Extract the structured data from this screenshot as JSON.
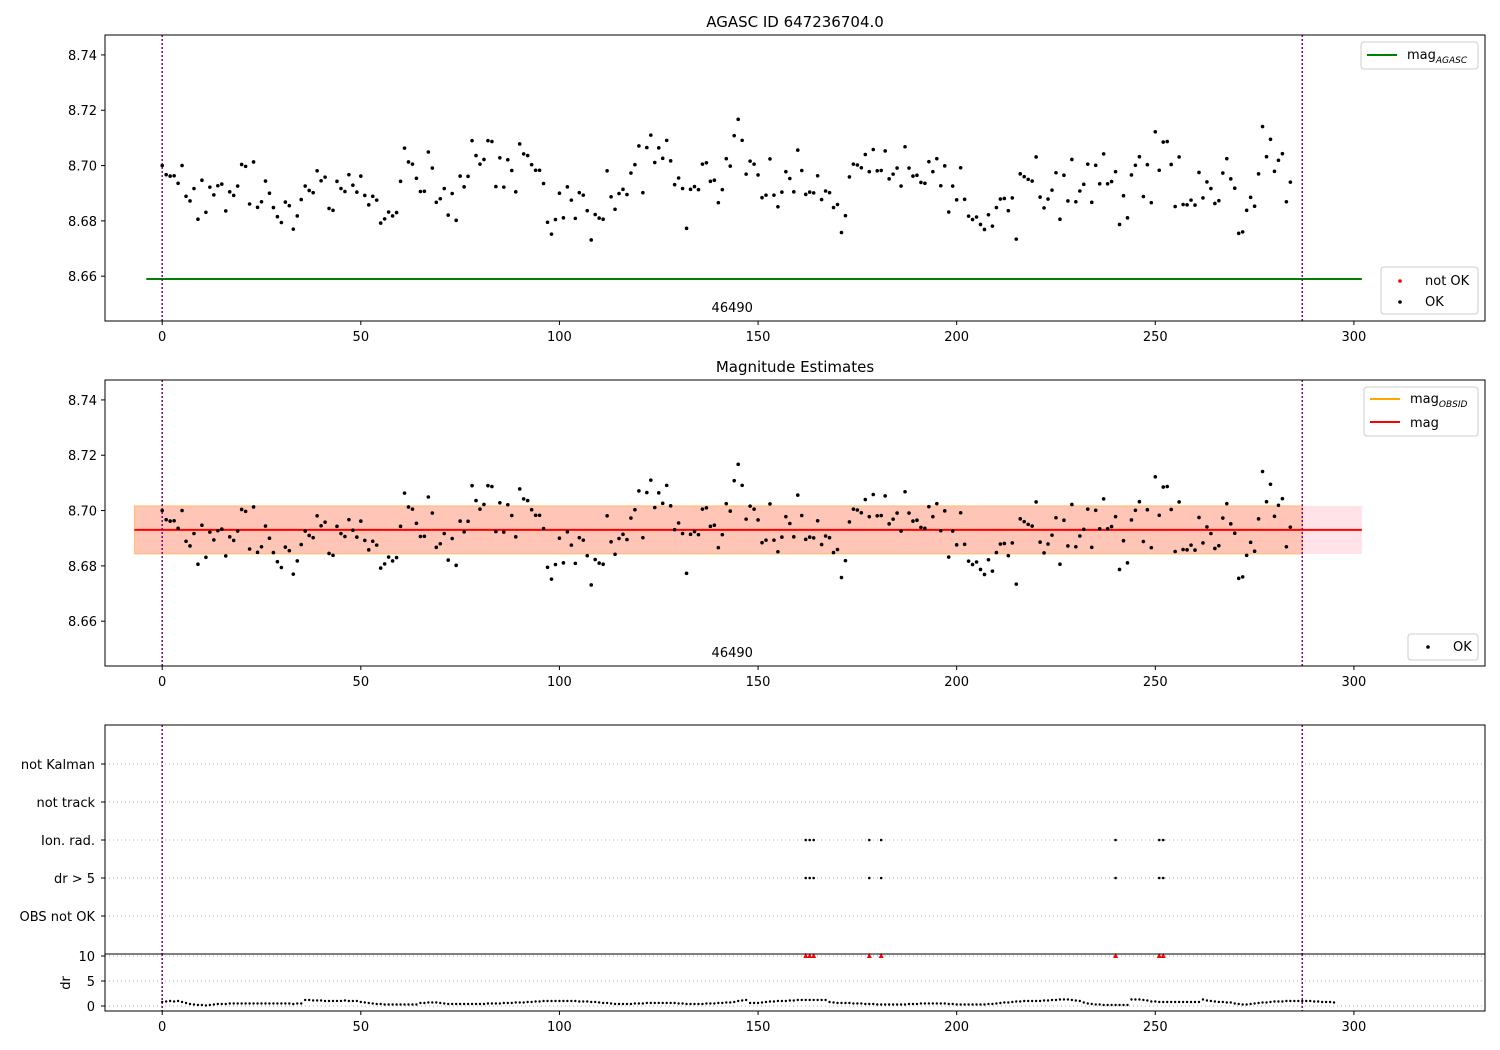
{
  "chart_data": [
    {
      "type": "scatter",
      "title": "AGASC ID 647236704.0",
      "xlim": [
        -14.4,
        333
      ],
      "ylim": [
        8.6438,
        8.7472
      ],
      "xticks": [
        0,
        50,
        100,
        150,
        200,
        250,
        300
      ],
      "yticks": [
        8.66,
        8.68,
        8.7,
        8.72,
        8.74
      ],
      "vlines": [
        0,
        287
      ],
      "hline_agasc": {
        "y": 8.659,
        "x": [
          -4,
          302
        ],
        "color": "#008000"
      },
      "obsid_label": {
        "text": "46490",
        "x": 143.5
      },
      "legend_top": [
        {
          "label": "mag",
          "sub": "AGASC",
          "color": "#008000",
          "kind": "line"
        }
      ],
      "legend_bottom": [
        {
          "label": "not OK",
          "color": "#ff0000",
          "kind": "dot"
        },
        {
          "label": "OK",
          "color": "#000000",
          "kind": "dot"
        }
      ]
    },
    {
      "type": "scatter",
      "title": "Magnitude Estimates",
      "xlim": [
        -14.4,
        333
      ],
      "ylim": [
        8.6438,
        8.7472
      ],
      "xticks": [
        0,
        50,
        100,
        150,
        200,
        250,
        300
      ],
      "yticks": [
        8.66,
        8.68,
        8.7,
        8.72,
        8.74
      ],
      "vlines": [
        0,
        287
      ],
      "mag_line": {
        "y": 8.693,
        "x": [
          -7,
          302
        ],
        "color": "#ff0000"
      },
      "band_outer": {
        "y": [
          8.6843,
          8.7017
        ],
        "x": [
          -7,
          302
        ],
        "color": "#ffc0cb"
      },
      "band_inner": {
        "y": [
          8.6843,
          8.7017
        ],
        "x": [
          -7,
          287
        ],
        "color": "#ffa07a"
      },
      "obsid_label": {
        "text": "46490",
        "x": 143.5
      },
      "legend_top": [
        {
          "label": "mag",
          "sub": "OBSID",
          "color": "#ffa500",
          "kind": "line"
        },
        {
          "label": "mag",
          "sub": "",
          "color": "#ff0000",
          "kind": "line"
        }
      ],
      "legend_bottom": [
        {
          "label": "OK",
          "color": "#000000",
          "kind": "dot"
        }
      ]
    },
    {
      "type": "scatter",
      "categories": [
        "not Kalman",
        "not track",
        "Ion. rad.",
        "dr > 5",
        "OBS not OK"
      ],
      "flag_points": {
        "Ion. rad.": [
          162,
          163,
          164,
          178,
          181,
          240,
          251,
          252
        ],
        "dr > 5": [
          162,
          163,
          164,
          178,
          181,
          240,
          251,
          252
        ]
      },
      "vlines": [
        0,
        287
      ]
    },
    {
      "type": "scatter",
      "ylabel": "dr",
      "yticks": [
        0,
        5,
        10
      ],
      "ylim": [
        -1,
        10.4
      ],
      "xticks": [
        0,
        50,
        100,
        150,
        200,
        250,
        300
      ],
      "clipped_points": [
        162,
        163,
        164,
        178,
        181,
        240,
        251,
        252
      ],
      "vlines": [
        0,
        287
      ]
    }
  ],
  "mags": [
    8.7,
    8.6967,
    8.6962,
    8.6963,
    8.6936,
    8.7,
    8.6889,
    8.6872,
    8.6917,
    8.6806,
    8.6947,
    8.6831,
    8.6922,
    8.6894,
    8.6927,
    8.6933,
    8.6836,
    8.6905,
    8.6892,
    8.6926,
    8.7004,
    8.6997,
    8.6861,
    8.7013,
    8.6849,
    8.6869,
    8.6944,
    8.69,
    8.6848,
    8.6815,
    8.6794,
    8.6868,
    8.6855,
    8.677,
    8.6818,
    8.6877,
    8.6926,
    8.691,
    8.6902,
    8.6981,
    8.6945,
    8.6958,
    8.6845,
    8.6838,
    8.6943,
    8.6917,
    8.6906,
    8.6967,
    8.6929,
    8.6904,
    8.6962,
    8.6892,
    8.6858,
    8.6889,
    8.6875,
    8.6792,
    8.6807,
    8.6832,
    8.6818,
    8.683,
    8.6943,
    8.7063,
    8.7013,
    8.7005,
    8.6954,
    8.6906,
    8.6907,
    8.7049,
    8.6991,
    8.6867,
    8.688,
    8.6917,
    8.6821,
    8.6899,
    8.6802,
    8.6962,
    8.6923,
    8.6961,
    8.709,
    8.7036,
    8.7005,
    8.7022,
    8.709,
    8.7087,
    8.6924,
    8.7028,
    8.6922,
    8.7021,
    8.6982,
    8.6905,
    8.7078,
    8.7042,
    8.7036,
    8.7003,
    8.6983,
    8.6983,
    8.6935,
    8.6795,
    8.6752,
    8.6805,
    8.69,
    8.6811,
    8.6923,
    8.6875,
    8.6809,
    8.6902,
    8.6893,
    8.6837,
    8.6731,
    8.6823,
    8.681,
    8.6806,
    8.6981,
    8.6887,
    8.6842,
    8.6899,
    8.6914,
    8.6895,
    8.6973,
    8.7003,
    8.7071,
    8.6902,
    8.7065,
    8.711,
    8.7011,
    8.7064,
    8.7026,
    8.7091,
    8.7017,
    8.6931,
    8.6955,
    8.6917,
    8.6773,
    8.6914,
    8.6924,
    8.6913,
    8.7005,
    8.701,
    8.6943,
    8.6947,
    8.6866,
    8.6913,
    8.7025,
    8.6998,
    8.7108,
    8.7167,
    8.7091,
    8.6969,
    8.7016,
    8.7005,
    8.6966,
    8.6884,
    8.6893,
    8.7024,
    8.6893,
    8.6851,
    8.6904,
    8.6978,
    8.6953,
    8.6905,
    8.7056,
    8.6982,
    8.6896,
    8.6904,
    8.6901,
    8.6963,
    8.6877,
    8.6908,
    8.6902,
    8.6848,
    8.6859,
    8.6758,
    8.6819,
    8.6959,
    8.7005,
    8.7002,
    8.6992,
    8.704,
    8.6978,
    8.7058,
    8.6981,
    8.6982,
    8.7053,
    8.6952,
    8.6969,
    8.6991,
    8.6926,
    8.7068,
    8.6991,
    8.6962,
    8.6965,
    8.6939,
    8.6936,
    8.7014,
    8.6978,
    8.7025,
    8.6927,
    8.6999,
    8.6832,
    8.6926,
    8.6876,
    8.6992,
    8.6878,
    8.6817,
    8.6805,
    8.6814,
    8.6787,
    8.6769,
    8.6822,
    8.6781,
    8.6848,
    8.6879,
    8.6881,
    8.6837,
    8.6883,
    8.6734,
    8.697,
    8.696,
    8.695,
    8.6944,
    8.7031,
    8.6886,
    8.6847,
    8.6879,
    8.6911,
    8.6974,
    8.6806,
    8.6965,
    8.6872,
    8.7022,
    8.6869,
    8.6908,
    8.6932,
    8.7005,
    8.6867,
    8.7001,
    8.6934,
    8.7042,
    8.6934,
    8.6942,
    8.6978,
    8.6787,
    8.6891,
    8.6811,
    8.6966,
    8.7001,
    8.7032,
    8.6888,
    8.7003,
    8.6866,
    8.7122,
    8.6983,
    8.7085,
    8.7087,
    8.7004,
    8.6852,
    8.7031,
    8.6859,
    8.6858,
    8.6875,
    8.6857,
    8.6975,
    8.6883,
    8.6941,
    8.6917,
    8.6863,
    8.6873,
    8.6973,
    8.7025,
    8.6952,
    8.6918,
    8.6755,
    8.676,
    8.6838,
    8.6885,
    8.6853,
    8.697,
    8.7141,
    8.7032,
    8.7095,
    8.6979,
    8.7019,
    8.7043,
    8.6869,
    8.694
  ],
  "dr": [
    0.8,
    0.9,
    1,
    0.9,
    1,
    0.8,
    0.6,
    0.4,
    0.3,
    0.2,
    0.2,
    0.1,
    0.2,
    0.3,
    0.4,
    0.4,
    0.4,
    0.5,
    0.5,
    0.5,
    0.5,
    0.5,
    0.5,
    0.5,
    0.5,
    0.5,
    0.5,
    0.5,
    0.5,
    0.5,
    0.5,
    0.5,
    0.5,
    0.4,
    0.5,
    0.5,
    1.2,
    1.2,
    1.1,
    1.1,
    1.1,
    1,
    1,
    1,
    1,
    1,
    1.1,
    1,
    1,
    1,
    0.8,
    0.7,
    0.6,
    0.5,
    0.4,
    0.4,
    0.3,
    0.3,
    0.3,
    0.3,
    0.3,
    0.3,
    0.3,
    0.3,
    0.3,
    0.6,
    0.6,
    0.7,
    0.7,
    0.7,
    0.6,
    0.5,
    0.4,
    0.4,
    0.4,
    0.4,
    0.4,
    0.4,
    0.4,
    0.4,
    0.4,
    0.4,
    0.5,
    0.5,
    0.5,
    0.5,
    0.6,
    0.6,
    0.6,
    0.7,
    0.7,
    0.7,
    0.8,
    0.8,
    0.9,
    0.9,
    1,
    1,
    1,
    1,
    1,
    1,
    1,
    1,
    1,
    0.9,
    0.9,
    0.9,
    0.8,
    0.8,
    0.7,
    0.6,
    0.6,
    0.5,
    0.4,
    0.4,
    0.4,
    0.4,
    0.4,
    0.5,
    0.5,
    0.5,
    0.6,
    0.6,
    0.6,
    0.6,
    0.6,
    0.6,
    0.6,
    0.6,
    0.5,
    0.5,
    0.4,
    0.4,
    0.4,
    0.4,
    0.4,
    0.5,
    0.5,
    0.5,
    0.6,
    0.6,
    0.7,
    0.7,
    0.8,
    1,
    1.1,
    1.2,
    0.6,
    0.6,
    0.6,
    0.7,
    0.8,
    0.9,
    0.9,
    1,
    1,
    1,
    1.1,
    1.1,
    1.2,
    1.2,
    1.2,
    1.2,
    1.2,
    1.2,
    1.2,
    1.2,
    0.8,
    0.7,
    0.6,
    0.6,
    0.6,
    0.6,
    0.5,
    0.5,
    0.5,
    0.4,
    0.4,
    0.4,
    0.3,
    0.3,
    0.3,
    0.3,
    0.3,
    0.3,
    0.3,
    0.3,
    0.4,
    0.4,
    0.4,
    0.5,
    0.5,
    0.5,
    0.5,
    0.5,
    0.5,
    0.5,
    0.4,
    0.4,
    0.3,
    0.3,
    0.3,
    0.3,
    0.3,
    0.3,
    0.3,
    0.3,
    0.4,
    0.4,
    0.5,
    0.6,
    0.7,
    0.7,
    0.8,
    0.9,
    0.9,
    1,
    1,
    1,
    1,
    1,
    1.1,
    1.1,
    1.2,
    1.2,
    1.3,
    1.3,
    1.3,
    1.2,
    1.1,
    1,
    0.7,
    0.5,
    0.4,
    0.3,
    0.3,
    0.2,
    0.2,
    0.2,
    0.2,
    0.2,
    0.2,
    0.2,
    1.3,
    1.3,
    1.3,
    1.2,
    1.1,
    0.9,
    0.9,
    0.8,
    0.8,
    0.8,
    0.8,
    0.8,
    0.8,
    0.8,
    0.8,
    0.8,
    0.8,
    0.8,
    1.3,
    1.1,
    1,
    0.9,
    0.8,
    0.8,
    0.7,
    0.7,
    0.5,
    0.4,
    0.3,
    0.3,
    0.4,
    0.5,
    0.6,
    0.7,
    0.7,
    0.8,
    0.9,
    0.9,
    0.9,
    1,
    1,
    1,
    1,
    1,
    1,
    1,
    0.9,
    0.9,
    0.8,
    0.8,
    0.8,
    0.7
  ]
}
